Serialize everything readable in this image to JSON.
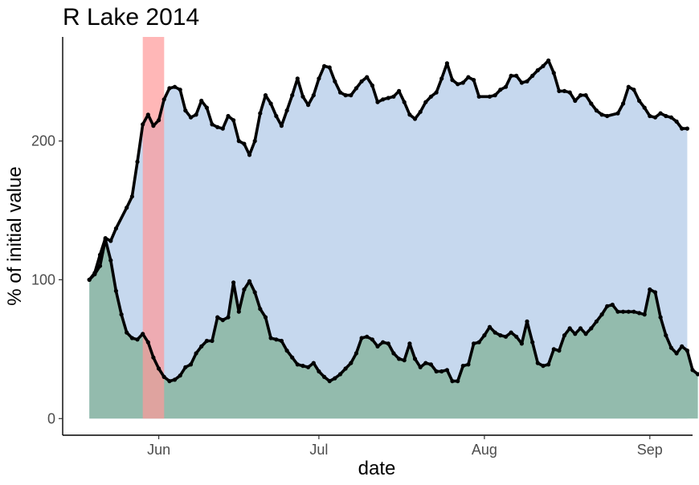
{
  "chart_data": {
    "type": "area",
    "title": "R Lake 2014",
    "xlabel": "date",
    "ylabel": "% of initial value",
    "xlim": [
      "2014-05-14",
      "2014-09-09"
    ],
    "ylim": [
      -12,
      275
    ],
    "x_ticks": [
      {
        "label": "Jun",
        "date": "2014-06-01"
      },
      {
        "label": "Jul",
        "date": "2014-07-01"
      },
      {
        "label": "Aug",
        "date": "2014-08-01"
      },
      {
        "label": "Sep",
        "date": "2014-09-01"
      }
    ],
    "y_ticks": [
      0,
      100,
      200
    ],
    "grid": false,
    "highlight_band": {
      "start": "2014-05-29",
      "end": "2014-06-02",
      "color": "#ff9999"
    },
    "series": [
      {
        "fill": "#c6d8ee",
        "line": "#000000",
        "points": [
          [
            "2014-05-19",
            100
          ],
          [
            "2014-05-20",
            105
          ],
          [
            "2014-05-21",
            118
          ],
          [
            "2014-05-22",
            130
          ],
          [
            "2014-05-23",
            128
          ],
          [
            "2014-05-24",
            137
          ],
          [
            "2014-05-26",
            152
          ],
          [
            "2014-05-27",
            160
          ],
          [
            "2014-05-28",
            185
          ],
          [
            "2014-05-29",
            212
          ],
          [
            "2014-05-30",
            219
          ],
          [
            "2014-05-31",
            211
          ],
          [
            "2014-06-01",
            215
          ],
          [
            "2014-06-02",
            230
          ],
          [
            "2014-06-03",
            238
          ],
          [
            "2014-06-04",
            239
          ],
          [
            "2014-06-05",
            237
          ],
          [
            "2014-06-06",
            222
          ],
          [
            "2014-06-07",
            217
          ],
          [
            "2014-06-08",
            219
          ],
          [
            "2014-06-09",
            229
          ],
          [
            "2014-06-10",
            224
          ],
          [
            "2014-06-11",
            212
          ],
          [
            "2014-06-12",
            210
          ],
          [
            "2014-06-13",
            209
          ],
          [
            "2014-06-14",
            218
          ],
          [
            "2014-06-15",
            215
          ],
          [
            "2014-06-16",
            200
          ],
          [
            "2014-06-17",
            198
          ],
          [
            "2014-06-18",
            190
          ],
          [
            "2014-06-19",
            200
          ],
          [
            "2014-06-20",
            220
          ],
          [
            "2014-06-21",
            233
          ],
          [
            "2014-06-22",
            227
          ],
          [
            "2014-06-23",
            218
          ],
          [
            "2014-06-24",
            211
          ],
          [
            "2014-06-25",
            222
          ],
          [
            "2014-06-26",
            233
          ],
          [
            "2014-06-27",
            245
          ],
          [
            "2014-06-28",
            232
          ],
          [
            "2014-06-29",
            226
          ],
          [
            "2014-06-30",
            233
          ],
          [
            "2014-07-01",
            245
          ],
          [
            "2014-07-02",
            254
          ],
          [
            "2014-07-03",
            253
          ],
          [
            "2014-07-04",
            243
          ],
          [
            "2014-07-05",
            235
          ],
          [
            "2014-07-06",
            233
          ],
          [
            "2014-07-07",
            233
          ],
          [
            "2014-07-08",
            238
          ],
          [
            "2014-07-09",
            243
          ],
          [
            "2014-07-10",
            246
          ],
          [
            "2014-07-11",
            240
          ],
          [
            "2014-07-12",
            228
          ],
          [
            "2014-07-13",
            230
          ],
          [
            "2014-07-14",
            231
          ],
          [
            "2014-07-15",
            232
          ],
          [
            "2014-07-16",
            236
          ],
          [
            "2014-07-17",
            228
          ],
          [
            "2014-07-18",
            219
          ],
          [
            "2014-07-19",
            216
          ],
          [
            "2014-07-20",
            221
          ],
          [
            "2014-07-21",
            228
          ],
          [
            "2014-07-22",
            232
          ],
          [
            "2014-07-23",
            235
          ],
          [
            "2014-07-24",
            245
          ],
          [
            "2014-07-25",
            256
          ],
          [
            "2014-07-26",
            244
          ],
          [
            "2014-07-27",
            241
          ],
          [
            "2014-07-28",
            242
          ],
          [
            "2014-07-29",
            246
          ],
          [
            "2014-07-30",
            244
          ],
          [
            "2014-07-31",
            232
          ],
          [
            "2014-08-02",
            232
          ],
          [
            "2014-08-03",
            233
          ],
          [
            "2014-08-04",
            237
          ],
          [
            "2014-08-05",
            239
          ],
          [
            "2014-08-06",
            247
          ],
          [
            "2014-08-07",
            247
          ],
          [
            "2014-08-08",
            242
          ],
          [
            "2014-08-09",
            243
          ],
          [
            "2014-08-10",
            247
          ],
          [
            "2014-08-11",
            251
          ],
          [
            "2014-08-12",
            254
          ],
          [
            "2014-08-13",
            258
          ],
          [
            "2014-08-14",
            249
          ],
          [
            "2014-08-15",
            236
          ],
          [
            "2014-08-16",
            236
          ],
          [
            "2014-08-17",
            235
          ],
          [
            "2014-08-18",
            229
          ],
          [
            "2014-08-19",
            233
          ],
          [
            "2014-08-20",
            233
          ],
          [
            "2014-08-21",
            227
          ],
          [
            "2014-08-22",
            222
          ],
          [
            "2014-08-23",
            219
          ],
          [
            "2014-08-24",
            218
          ],
          [
            "2014-08-26",
            220
          ],
          [
            "2014-08-27",
            227
          ],
          [
            "2014-08-28",
            239
          ],
          [
            "2014-08-29",
            237
          ],
          [
            "2014-08-30",
            229
          ],
          [
            "2014-08-31",
            224
          ],
          [
            "2014-09-01",
            218
          ],
          [
            "2014-09-02",
            217
          ],
          [
            "2014-09-03",
            220
          ],
          [
            "2014-09-04",
            218
          ],
          [
            "2014-09-05",
            217
          ],
          [
            "2014-09-06",
            214
          ],
          [
            "2014-09-07",
            209
          ],
          [
            "2014-09-08",
            209
          ]
        ]
      },
      {
        "fill": "#93bbad",
        "line": "#000000",
        "points": [
          [
            "2014-05-19",
            100
          ],
          [
            "2014-05-20",
            104
          ],
          [
            "2014-05-21",
            110
          ],
          [
            "2014-05-22",
            129
          ],
          [
            "2014-05-23",
            114
          ],
          [
            "2014-05-24",
            92
          ],
          [
            "2014-05-25",
            75
          ],
          [
            "2014-05-26",
            62
          ],
          [
            "2014-05-27",
            58
          ],
          [
            "2014-05-28",
            57
          ],
          [
            "2014-05-29",
            61
          ],
          [
            "2014-05-30",
            55
          ],
          [
            "2014-05-31",
            44
          ],
          [
            "2014-06-01",
            36
          ],
          [
            "2014-06-02",
            30
          ],
          [
            "2014-06-03",
            27
          ],
          [
            "2014-06-04",
            28
          ],
          [
            "2014-06-05",
            31
          ],
          [
            "2014-06-06",
            37
          ],
          [
            "2014-06-07",
            39
          ],
          [
            "2014-06-08",
            47
          ],
          [
            "2014-06-09",
            52
          ],
          [
            "2014-06-10",
            56
          ],
          [
            "2014-06-11",
            56
          ],
          [
            "2014-06-12",
            73
          ],
          [
            "2014-06-13",
            71
          ],
          [
            "2014-06-14",
            73
          ],
          [
            "2014-06-15",
            98
          ],
          [
            "2014-06-16",
            77
          ],
          [
            "2014-06-17",
            93
          ],
          [
            "2014-06-18",
            99
          ],
          [
            "2014-06-19",
            91
          ],
          [
            "2014-06-20",
            79
          ],
          [
            "2014-06-21",
            73
          ],
          [
            "2014-06-22",
            58
          ],
          [
            "2014-06-23",
            57
          ],
          [
            "2014-06-24",
            56
          ],
          [
            "2014-06-25",
            49
          ],
          [
            "2014-06-26",
            44
          ],
          [
            "2014-06-27",
            39
          ],
          [
            "2014-06-28",
            38
          ],
          [
            "2014-06-29",
            37
          ],
          [
            "2014-06-30",
            40
          ],
          [
            "2014-07-01",
            34
          ],
          [
            "2014-07-02",
            30
          ],
          [
            "2014-07-03",
            27
          ],
          [
            "2014-07-04",
            29
          ],
          [
            "2014-07-05",
            32
          ],
          [
            "2014-07-06",
            36
          ],
          [
            "2014-07-07",
            40
          ],
          [
            "2014-07-08",
            47
          ],
          [
            "2014-07-09",
            58
          ],
          [
            "2014-07-10",
            59
          ],
          [
            "2014-07-11",
            57
          ],
          [
            "2014-07-12",
            52
          ],
          [
            "2014-07-13",
            55
          ],
          [
            "2014-07-14",
            54
          ],
          [
            "2014-07-15",
            47
          ],
          [
            "2014-07-16",
            43
          ],
          [
            "2014-07-17",
            42
          ],
          [
            "2014-07-18",
            54
          ],
          [
            "2014-07-19",
            43
          ],
          [
            "2014-07-20",
            37
          ],
          [
            "2014-07-21",
            40
          ],
          [
            "2014-07-22",
            39
          ],
          [
            "2014-07-23",
            34
          ],
          [
            "2014-07-24",
            34
          ],
          [
            "2014-07-25",
            35
          ],
          [
            "2014-07-26",
            27
          ],
          [
            "2014-07-27",
            27
          ],
          [
            "2014-07-28",
            38
          ],
          [
            "2014-07-29",
            39
          ],
          [
            "2014-07-30",
            54
          ],
          [
            "2014-07-31",
            55
          ],
          [
            "2014-08-01",
            60
          ],
          [
            "2014-08-02",
            66
          ],
          [
            "2014-08-03",
            62
          ],
          [
            "2014-08-04",
            60
          ],
          [
            "2014-08-05",
            59
          ],
          [
            "2014-08-06",
            62
          ],
          [
            "2014-08-07",
            59
          ],
          [
            "2014-08-08",
            54
          ],
          [
            "2014-08-09",
            70
          ],
          [
            "2014-08-10",
            55
          ],
          [
            "2014-08-11",
            40
          ],
          [
            "2014-08-12",
            38
          ],
          [
            "2014-08-13",
            39
          ],
          [
            "2014-08-14",
            50
          ],
          [
            "2014-08-15",
            49
          ],
          [
            "2014-08-16",
            60
          ],
          [
            "2014-08-17",
            65
          ],
          [
            "2014-08-18",
            61
          ],
          [
            "2014-08-19",
            65
          ],
          [
            "2014-08-20",
            61
          ],
          [
            "2014-08-21",
            65
          ],
          [
            "2014-08-22",
            70
          ],
          [
            "2014-08-23",
            75
          ],
          [
            "2014-08-24",
            81
          ],
          [
            "2014-08-25",
            82
          ],
          [
            "2014-08-26",
            77
          ],
          [
            "2014-08-27",
            77
          ],
          [
            "2014-08-28",
            77
          ],
          [
            "2014-08-29",
            77
          ],
          [
            "2014-08-30",
            76
          ],
          [
            "2014-08-31",
            75
          ],
          [
            "2014-09-01",
            93
          ],
          [
            "2014-09-02",
            91
          ],
          [
            "2014-09-03",
            73
          ],
          [
            "2014-09-04",
            60
          ],
          [
            "2014-09-05",
            51
          ],
          [
            "2014-09-06",
            47
          ],
          [
            "2014-09-07",
            52
          ],
          [
            "2014-09-08",
            49
          ],
          [
            "2014-09-09",
            35
          ],
          [
            "2014-09-10",
            32
          ]
        ]
      }
    ]
  }
}
